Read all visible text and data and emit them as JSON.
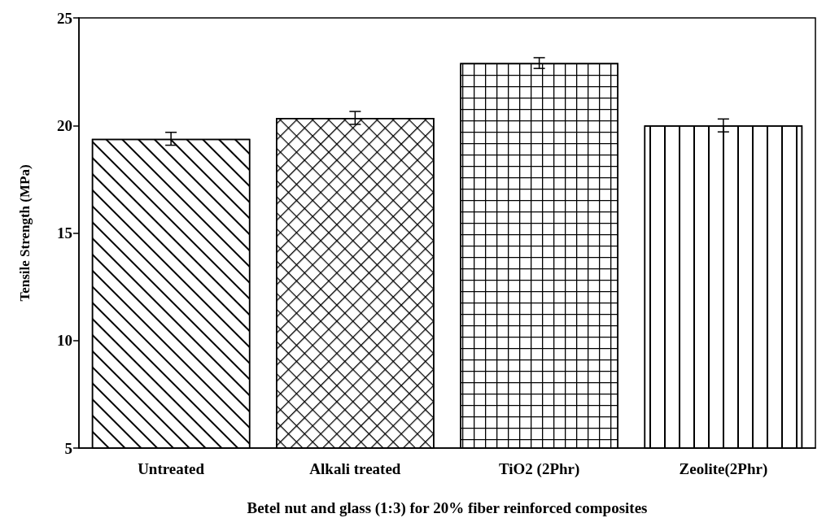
{
  "chart_data": {
    "type": "bar",
    "xlabel": "Betel nut and glass (1:3) for 20% fiber reinforced composites",
    "ylabel": "Tensile Strength (MPa)",
    "categories": [
      "Untreated",
      "Alkali treated",
      "TiO2 (2Phr)",
      "Zeolite(2Phr)"
    ],
    "values": [
      19.38,
      20.35,
      22.9,
      20.0
    ],
    "errors": [
      0.3,
      0.3,
      0.25,
      0.3
    ],
    "color": "#000000",
    "ylim": [
      5,
      25
    ],
    "yticks": [
      5,
      10,
      15,
      20,
      25
    ],
    "grid": false
  }
}
